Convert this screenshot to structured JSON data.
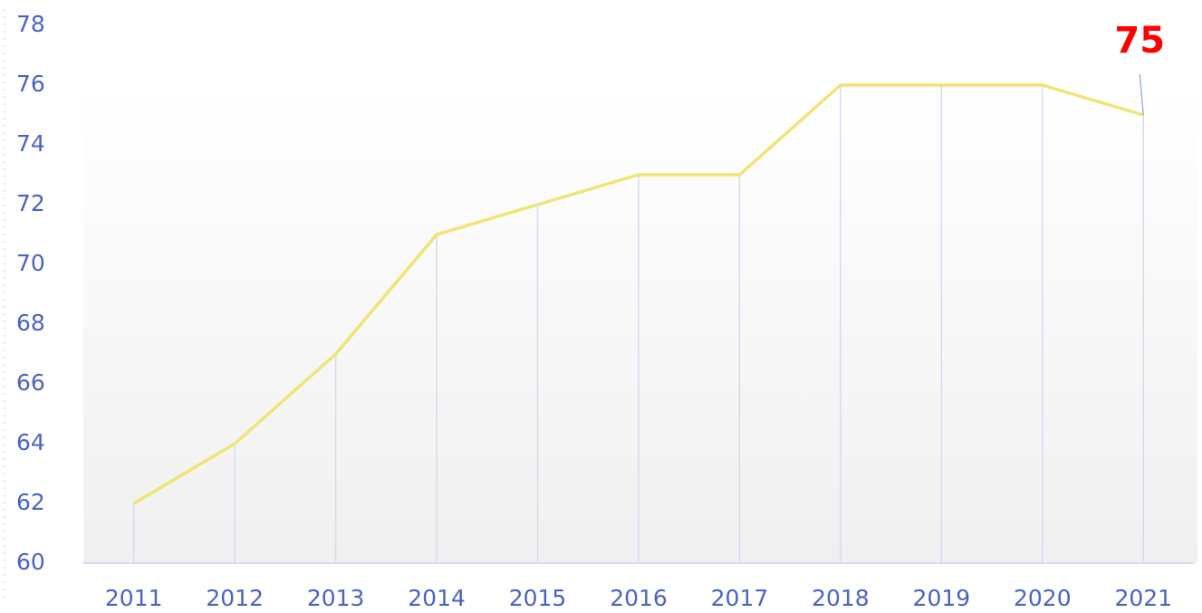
{
  "chart_data": {
    "type": "line",
    "categories": [
      "2011",
      "2012",
      "2013",
      "2014",
      "2015",
      "2016",
      "2017",
      "2018",
      "2019",
      "2020",
      "2021"
    ],
    "series": [
      {
        "color": "#efe474",
        "values": [
          62,
          64,
          67,
          71,
          72,
          73,
          73,
          76,
          76,
          76,
          75
        ]
      }
    ],
    "ylim": [
      60,
      78
    ],
    "yticks": [
      60,
      62,
      64,
      66,
      68,
      70,
      72,
      74,
      76,
      78
    ],
    "drop_lines": true
  }
}
